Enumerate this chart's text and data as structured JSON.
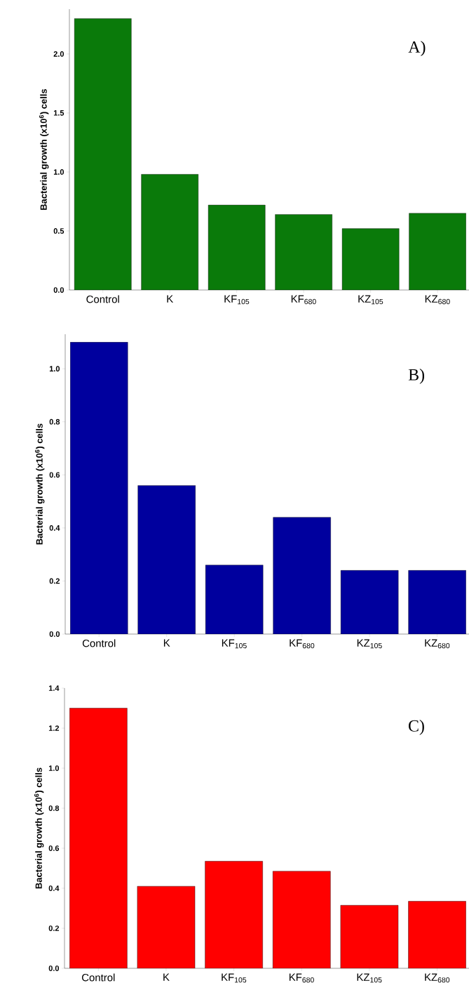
{
  "chart_data": [
    {
      "type": "bar",
      "categories": [
        "Control",
        "K",
        "KF$_{105}$",
        "KF$_{680}$",
        "KZ$_{105}$",
        "KZ$_{680}$"
      ],
      "values": [
        2.3,
        0.98,
        0.72,
        0.64,
        0.52,
        0.65
      ],
      "color": "#0a7a0a",
      "ylabel": "Bacterial growth (x10$^{6}$) cells",
      "ylim": [
        0,
        2.38
      ],
      "yticks": [
        {
          "value": 0,
          "label": "0.0"
        },
        {
          "value": 0.5,
          "label": "0.5"
        },
        {
          "value": 1,
          "label": "1.0"
        },
        {
          "value": 1.5,
          "label": "1.5"
        },
        {
          "value": 2,
          "label": "2.0"
        }
      ],
      "annotations": [
        "A)"
      ]
    },
    {
      "type": "bar",
      "categories": [
        "Control",
        "K",
        "KF$_{105}$",
        "KF$_{680}$",
        "KZ$_{105}$",
        "KZ$_{680}$"
      ],
      "values": [
        1.1,
        0.56,
        0.26,
        0.44,
        0.24,
        0.24
      ],
      "color": "#00009e",
      "ylabel": "Bacterial growth (x10$^{6}$) cells",
      "ylim": [
        0,
        1.13
      ],
      "yticks": [
        {
          "value": 0,
          "label": "0.0"
        },
        {
          "value": 0.2,
          "label": "0.2"
        },
        {
          "value": 0.4,
          "label": "0.4"
        },
        {
          "value": 0.6,
          "label": "0.6"
        },
        {
          "value": 0.8,
          "label": "0.8"
        },
        {
          "value": 1,
          "label": "1.0"
        }
      ],
      "annotations": [
        "B)"
      ]
    },
    {
      "type": "bar",
      "categories": [
        "Control",
        "K",
        "KF$_{105}$",
        "KF$_{680}$",
        "KZ$_{105}$",
        "KZ$_{680}$"
      ],
      "values": [
        1.3,
        0.41,
        0.535,
        0.485,
        0.315,
        0.335
      ],
      "color": "#ff0000",
      "ylabel": "Bacterial growth (x10$^{6}$) cells",
      "ylim": [
        0,
        1.4
      ],
      "yticks": [
        {
          "value": 0,
          "label": "0.0"
        },
        {
          "value": 0.2,
          "label": "0.2"
        },
        {
          "value": 0.4,
          "label": "0.4"
        },
        {
          "value": 0.6,
          "label": "0.6"
        },
        {
          "value": 0.8,
          "label": "0.8"
        },
        {
          "value": 1,
          "label": "1.0"
        },
        {
          "value": 1.2,
          "label": "1.2"
        },
        {
          "value": 1.4,
          "label": "1.4"
        }
      ],
      "annotations": [
        "C)"
      ]
    }
  ]
}
